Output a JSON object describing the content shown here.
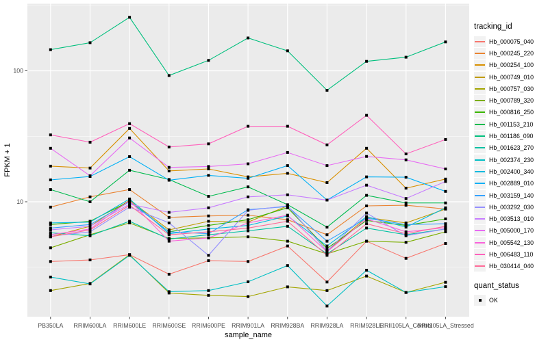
{
  "colors": {
    "panel_bg": "#EBEBEB",
    "gridline": "#FFFFFF",
    "axis_text": "#4D4D4D",
    "tick_mark": "#333333",
    "title_text": "#000000",
    "legend_key_bg": "#F2F2F2",
    "point": "#000000"
  },
  "chart_data": {
    "type": "line",
    "title": "",
    "xlabel": "sample_name",
    "ylabel": "FPKM + 1",
    "y_scale": "log10",
    "y_ticks": [
      10,
      100
    ],
    "y_tick_labels": [
      "10",
      "100"
    ],
    "y_minor_gridlines": [
      3.162,
      31.62,
      316.2
    ],
    "ylim_log": [
      1.3,
      330
    ],
    "grid": "on",
    "legend_position": "right",
    "point_shape": "filled-square",
    "legend": {
      "series_title": "tracking_id",
      "shape_title": "quant_status",
      "shape_label": "OK"
    },
    "categories": [
      "PB350LA",
      "RRIM600LA",
      "RRIM600LE",
      "RRIM600SE",
      "RRIM600PE",
      "RRIM901LA",
      "RRIM928BA",
      "RRIM928LA",
      "RRIM928LE",
      "RRII105LA_Control",
      "RRII105LA_Stressed"
    ],
    "series": [
      {
        "name": "Hb_000075_040",
        "color": "#F8766D",
        "values": [
          3.5,
          3.6,
          3.95,
          2.8,
          3.55,
          3.5,
          4.6,
          2.44,
          5.0,
          3.7,
          4.8
        ]
      },
      {
        "name": "Hb_000245_220",
        "color": "#EA8331",
        "values": [
          9.1,
          10.9,
          12.4,
          7.6,
          7.8,
          7.9,
          7.3,
          5.6,
          9.3,
          9.4,
          8.8
        ]
      },
      {
        "name": "Hb_000254_100",
        "color": "#D89000",
        "values": [
          18.7,
          18.1,
          36.3,
          17.2,
          17.8,
          15.5,
          16.5,
          14.0,
          25.6,
          12.7,
          14.9
        ]
      },
      {
        "name": "Hb_000749_010",
        "color": "#C09B00",
        "values": [
          5.4,
          6.5,
          10.3,
          6.1,
          7.1,
          7.0,
          9.3,
          4.2,
          7.6,
          6.9,
          8.8
        ]
      },
      {
        "name": "Hb_000757_030",
        "color": "#A3A500",
        "values": [
          2.1,
          2.38,
          3.95,
          2.01,
          1.93,
          1.89,
          2.24,
          2.1,
          2.71,
          2.03,
          2.43
        ]
      },
      {
        "name": "Hb_000789_320",
        "color": "#7CAE00",
        "values": [
          4.45,
          5.6,
          6.9,
          5.25,
          5.3,
          5.4,
          5.0,
          4.0,
          5.0,
          4.9,
          5.9
        ]
      },
      {
        "name": "Hb_000816_250",
        "color": "#39B600",
        "values": [
          6.7,
          7.1,
          10.1,
          5.9,
          6.6,
          7.3,
          9.0,
          4.4,
          7.2,
          6.6,
          7.4
        ]
      },
      {
        "name": "Hb_001153_210",
        "color": "#00BB4E",
        "values": [
          12.4,
          10.0,
          17.4,
          14.8,
          11.0,
          13.0,
          9.5,
          6.4,
          11.2,
          9.8,
          9.8
        ]
      },
      {
        "name": "Hb_001186_090",
        "color": "#00BF7D",
        "values": [
          145,
          164,
          256,
          92,
          120,
          178,
          142,
          71,
          118,
          127,
          166
        ]
      },
      {
        "name": "Hb_001623_270",
        "color": "#00C1A3",
        "values": [
          5.8,
          5.5,
          7.1,
          5.2,
          5.6,
          6.0,
          6.5,
          4.0,
          6.3,
          5.6,
          6.2
        ]
      },
      {
        "name": "Hb_002374_230",
        "color": "#00BFC4",
        "values": [
          2.66,
          2.36,
          3.9,
          2.06,
          2.1,
          2.45,
          3.26,
          1.6,
          3.0,
          2.03,
          2.25
        ]
      },
      {
        "name": "Hb_002400_340",
        "color": "#00BAE0",
        "values": [
          6.9,
          7.0,
          10.5,
          5.7,
          6.2,
          6.6,
          7.8,
          4.6,
          7.7,
          6.4,
          9.0
        ]
      },
      {
        "name": "Hb_002889_010",
        "color": "#00B0F6",
        "values": [
          14.7,
          15.6,
          22.1,
          14.6,
          15.9,
          15.1,
          18.9,
          10.3,
          15.5,
          15.4,
          12.0
        ]
      },
      {
        "name": "Hb_003159_140",
        "color": "#35A2FF",
        "values": [
          6.3,
          6.7,
          10.0,
          5.9,
          5.7,
          8.7,
          9.2,
          5.0,
          7.5,
          6.7,
          6.8
        ]
      },
      {
        "name": "Hb_003292_030",
        "color": "#9590FF",
        "values": [
          5.45,
          5.9,
          9.1,
          6.9,
          3.9,
          8.6,
          9.3,
          4.2,
          8.2,
          5.5,
          6.2
        ]
      },
      {
        "name": "Hb_003513_010",
        "color": "#C77CFF",
        "values": [
          6.1,
          6.5,
          9.6,
          8.3,
          9.0,
          10.9,
          11.3,
          10.3,
          13.4,
          10.6,
          14.3
        ]
      },
      {
        "name": "Hb_005000_170",
        "color": "#E76BF3",
        "values": [
          25.6,
          15.8,
          30.7,
          18.3,
          18.6,
          19.5,
          23.8,
          18.9,
          22.2,
          20.9,
          17.8
        ]
      },
      {
        "name": "Hb_005542_130",
        "color": "#FA62DB",
        "values": [
          5.6,
          6.2,
          10.2,
          5.0,
          5.3,
          6.9,
          7.9,
          4.15,
          7.4,
          5.9,
          6.35
        ]
      },
      {
        "name": "Hb_006483_110",
        "color": "#FF62BC",
        "values": [
          32.4,
          28.5,
          39.5,
          26.2,
          27.7,
          37.7,
          37.7,
          27.2,
          45.7,
          23.2,
          29.9
        ]
      },
      {
        "name": "Hb_030414_040",
        "color": "#FF6A98",
        "values": [
          5.4,
          6.1,
          9.4,
          5.6,
          5.9,
          6.3,
          7.1,
          3.9,
          6.8,
          5.7,
          6.5
        ]
      }
    ]
  }
}
